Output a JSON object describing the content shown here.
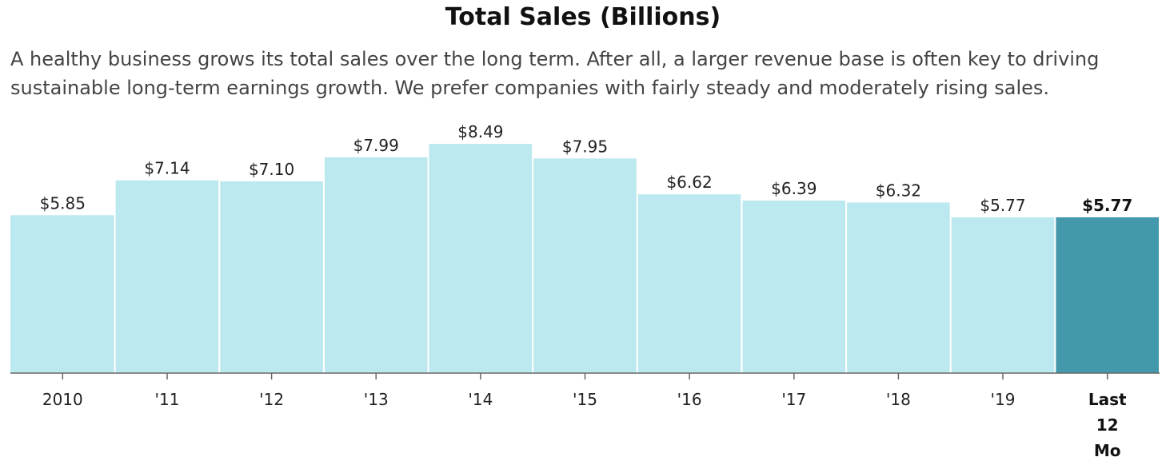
{
  "chart_data": {
    "type": "bar",
    "title": "Total Sales (Billions)",
    "subtitle": "A healthy business grows its total sales over the long term. After all, a larger revenue base is often key to driving sustainable long-term earnings growth. We prefer companies with fairly steady and moderately rising sales.",
    "xlabel": "",
    "ylabel": "",
    "ylim": [
      0,
      10
    ],
    "grid": false,
    "categories": [
      "2010",
      "'11",
      "'12",
      "'13",
      "'14",
      "'15",
      "'16",
      "'17",
      "'18",
      "'19",
      "Last 12 Mo"
    ],
    "values": [
      5.85,
      7.14,
      7.1,
      7.99,
      8.49,
      7.95,
      6.62,
      6.39,
      6.32,
      5.77,
      5.77
    ],
    "value_labels": [
      "$5.85",
      "$7.14",
      "$7.10",
      "$7.99",
      "$8.49",
      "$7.95",
      "$6.62",
      "$6.39",
      "$6.32",
      "$5.77",
      "$5.77"
    ],
    "highlight_index": 10,
    "colors": {
      "bar": "#bce9ef",
      "highlight": "#4399ab",
      "axis": "#666666"
    }
  }
}
